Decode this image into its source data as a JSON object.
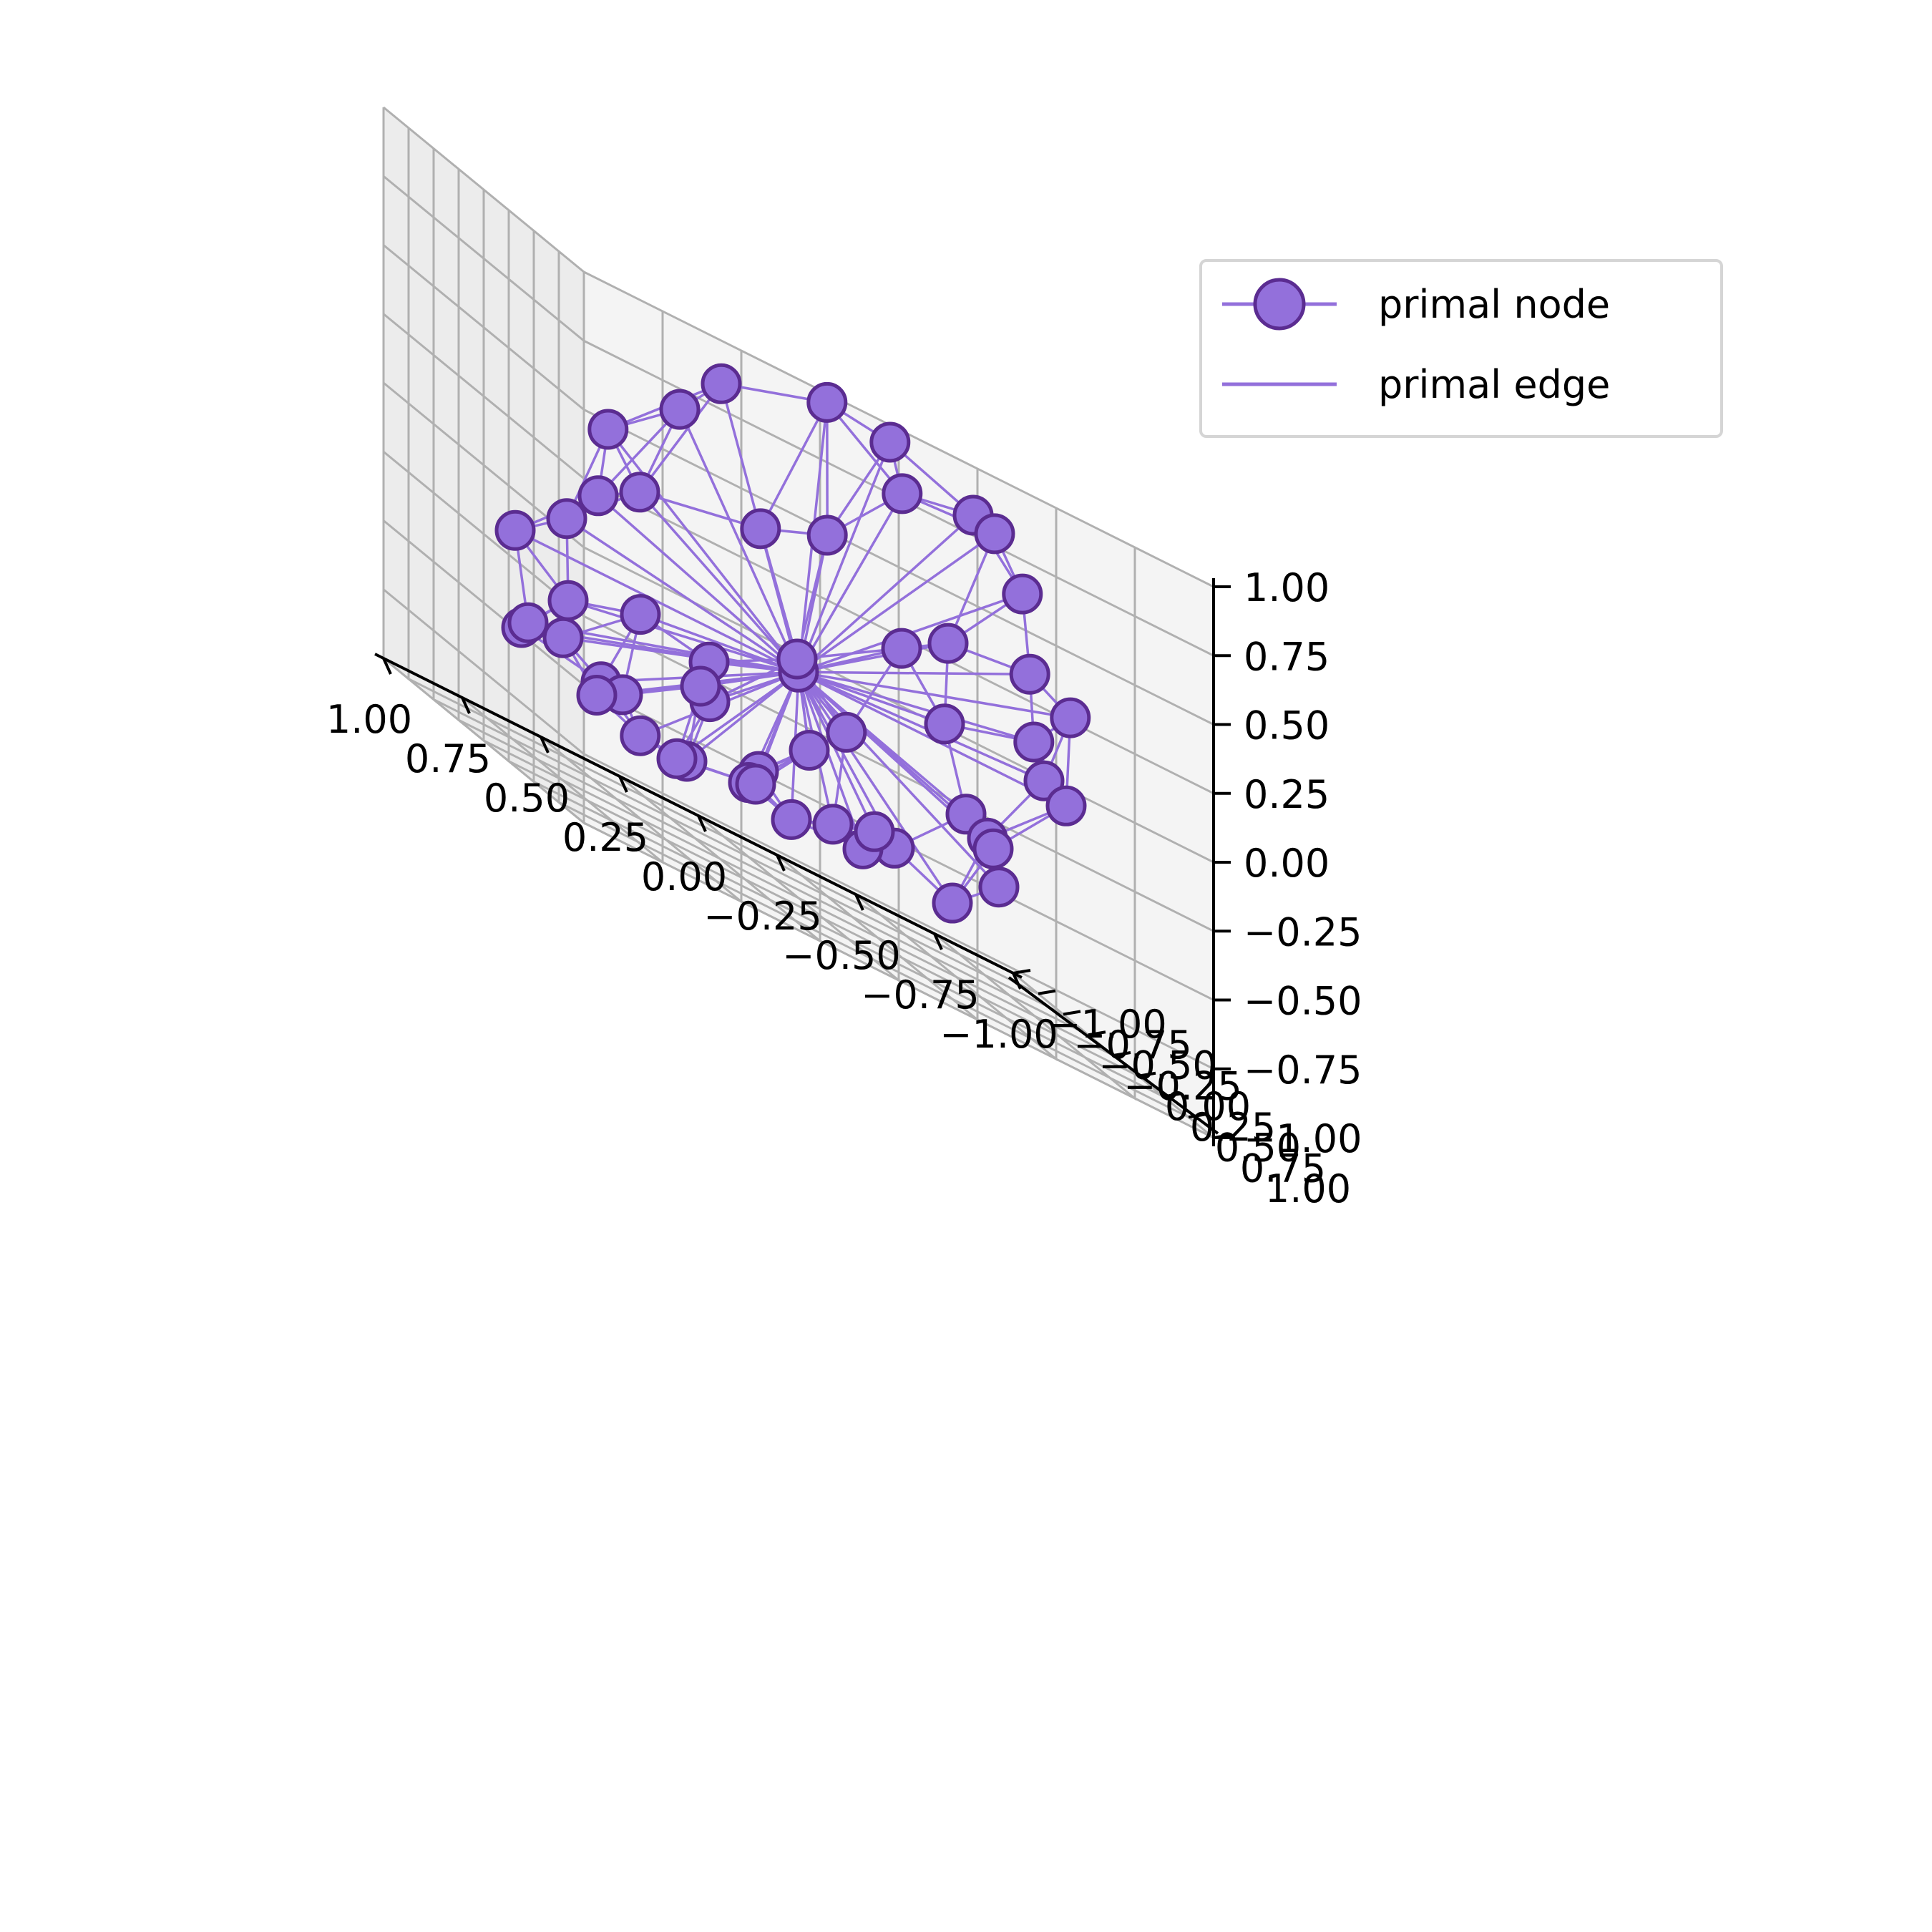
{
  "chart_data": {
    "type": "scatter",
    "projection": "3d",
    "title": "",
    "xlabel": "",
    "ylabel": "",
    "zlabel": "",
    "xlim": [
      -1.0,
      1.0
    ],
    "ylim": [
      -1.0,
      1.0
    ],
    "zlim": [
      -1.0,
      1.0
    ],
    "grid": true,
    "legend_position": "top-right",
    "xticks": [
      "−1.00",
      "−0.75",
      "−0.50",
      "−0.25",
      "0.00",
      "0.25",
      "0.50",
      "0.75",
      "1.00"
    ],
    "yticks": [
      "−1.00",
      "−0.75",
      "−0.50",
      "−0.25",
      "0.00",
      "0.25",
      "0.50",
      "0.75",
      "1.00"
    ],
    "zticks": [
      "−1.00",
      "−0.75",
      "−0.50",
      "−0.25",
      "0.00",
      "0.25",
      "0.50",
      "0.75",
      "1.00"
    ],
    "colors": {
      "node_fill": "#9370db",
      "node_edge": "#5b2c91",
      "edge": "#9370db",
      "pane": "#f2f2f2",
      "grid": "#b0b0b0"
    },
    "legend": [
      {
        "label": "primal node",
        "kind": "marker"
      },
      {
        "label": "primal edge",
        "kind": "line"
      }
    ],
    "series": [
      {
        "name": "primal node",
        "points": [
          [
            0.0,
            0.0,
            -0.18
          ],
          [
            -0.02,
            0.85,
            0.92
          ],
          [
            0.18,
            0.85,
            0.95
          ],
          [
            -0.3,
            0.8,
            0.8
          ],
          [
            0.5,
            0.8,
            0.82
          ],
          [
            -0.1,
            0.72,
            0.74
          ],
          [
            -0.4,
            0.7,
            0.76
          ],
          [
            0.6,
            0.7,
            0.64
          ],
          [
            -0.52,
            0.6,
            0.58
          ],
          [
            0.78,
            0.55,
            0.42
          ],
          [
            -0.55,
            0.58,
            0.3
          ],
          [
            0.28,
            0.5,
            0.33
          ],
          [
            -0.3,
            0.55,
            0.26
          ],
          [
            0.7,
            0.2,
            0.12
          ],
          [
            -0.72,
            0.45,
            0.2
          ],
          [
            0.02,
            0.35,
            0.41
          ],
          [
            -0.62,
            0.4,
            0.04
          ],
          [
            0.6,
            0.3,
            0.22
          ],
          [
            -0.2,
            0.4,
            0.14
          ],
          [
            0.8,
            0.2,
            -0.02
          ],
          [
            -0.7,
            0.25,
            -0.1
          ],
          [
            0.1,
            0.3,
            -0.1
          ],
          [
            -0.4,
            0.2,
            -0.08
          ],
          [
            0.55,
            0.15,
            -0.24
          ],
          [
            -0.85,
            0.0,
            -0.18
          ],
          [
            0.9,
            0.0,
            -0.18
          ],
          [
            -0.5,
            0.1,
            -0.38
          ],
          [
            -0.12,
            0.1,
            -0.3
          ],
          [
            0.3,
            0.05,
            -0.3
          ],
          [
            -0.6,
            0.0,
            -0.44
          ],
          [
            0.7,
            -0.1,
            -0.35
          ],
          [
            0.7,
            -0.15,
            -0.5
          ],
          [
            -0.65,
            -0.1,
            -0.48
          ],
          [
            0.25,
            -0.1,
            -0.46
          ],
          [
            -0.05,
            -0.05,
            -0.45
          ],
          [
            0.8,
            -0.25,
            -0.55
          ],
          [
            -0.7,
            -0.2,
            -0.62
          ],
          [
            0.2,
            -0.35,
            -0.45
          ],
          [
            -0.4,
            -0.3,
            -0.68
          ],
          [
            0.5,
            -0.4,
            -0.62
          ],
          [
            -0.3,
            -0.3,
            -0.74
          ],
          [
            0.7,
            -0.5,
            -0.55
          ],
          [
            -0.6,
            -0.35,
            -0.78
          ],
          [
            0.0,
            -0.4,
            -0.66
          ],
          [
            0.4,
            -0.5,
            -0.64
          ],
          [
            -0.4,
            -0.5,
            -0.68
          ],
          [
            0.45,
            -0.6,
            -0.7
          ],
          [
            0.0,
            -0.5,
            -0.73
          ],
          [
            -0.3,
            -0.6,
            -0.74
          ],
          [
            0.28,
            -0.7,
            -0.78
          ],
          [
            -0.2,
            -0.7,
            -0.81
          ],
          [
            0.1,
            -0.8,
            -0.8
          ],
          [
            -0.15,
            -0.9,
            -0.77
          ],
          [
            0.1,
            -0.9,
            -0.82
          ]
        ]
      }
    ]
  }
}
